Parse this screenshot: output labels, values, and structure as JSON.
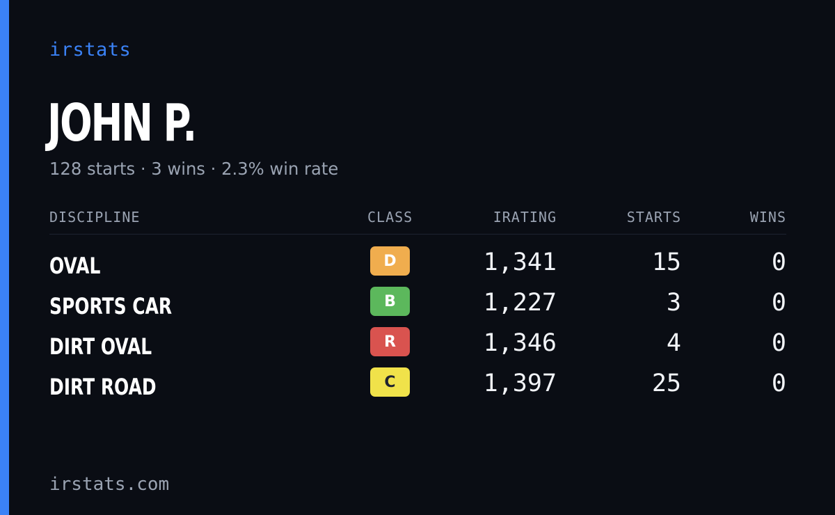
{
  "brand": "irstats",
  "driver": {
    "name": "JOHN P.",
    "summary": "128 starts · 3 wins · 2.3% win rate"
  },
  "table": {
    "headers": {
      "discipline": "DISCIPLINE",
      "class": "CLASS",
      "irating": "IRATING",
      "starts": "STARTS",
      "wins": "WINS"
    },
    "rows": [
      {
        "discipline": "OVAL",
        "class": "D",
        "class_color": "#f0ad4e",
        "class_text_color": "#ffffff",
        "irating": "1,341",
        "starts": "15",
        "wins": "0"
      },
      {
        "discipline": "SPORTS CAR",
        "class": "B",
        "class_color": "#5cb85c",
        "class_text_color": "#ffffff",
        "irating": "1,227",
        "starts": "3",
        "wins": "0"
      },
      {
        "discipline": "DIRT OVAL",
        "class": "R",
        "class_color": "#d9534f",
        "class_text_color": "#ffffff",
        "irating": "1,346",
        "starts": "4",
        "wins": "0"
      },
      {
        "discipline": "DIRT ROAD",
        "class": "C",
        "class_color": "#f0e24a",
        "class_text_color": "#1f2330",
        "irating": "1,397",
        "starts": "25",
        "wins": "0"
      }
    ]
  },
  "footer": "irstats.com",
  "colors": {
    "accent": "#3b82f6",
    "background": "#0a0d14",
    "muted_text": "#9aa3b2"
  }
}
